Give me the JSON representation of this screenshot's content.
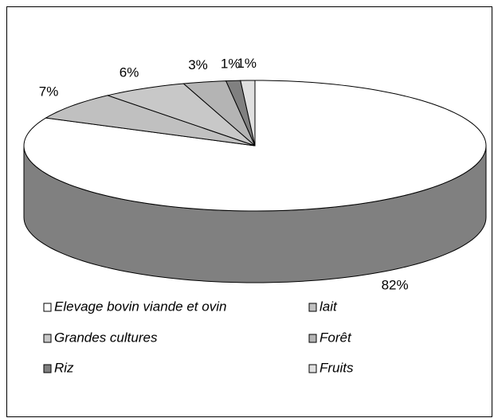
{
  "chart_data": {
    "type": "pie3d",
    "categories": [
      "Elevage bovin viande et ovin",
      "lait",
      "Grandes cultures",
      "Forêt",
      "Riz",
      "Fruits"
    ],
    "values": [
      82,
      7,
      6,
      3,
      1,
      1
    ],
    "value_labels": [
      "82%",
      "7%",
      "6%",
      "3%",
      "1%",
      "1%"
    ],
    "colors": [
      "#ffffff",
      "#c0c0c0",
      "#c8c8c8",
      "#b4b4b4",
      "#808080",
      "#e0e0e0"
    ],
    "legend": "bottom"
  }
}
